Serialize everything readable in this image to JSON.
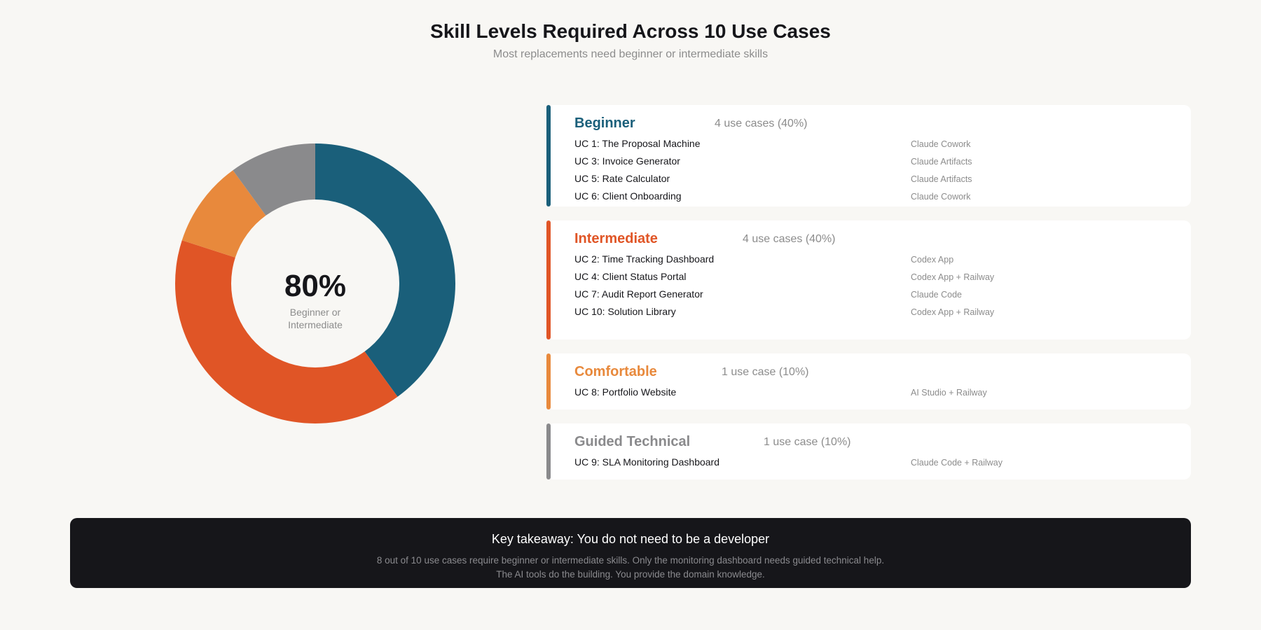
{
  "header": {
    "title": "Skill Levels Required Across 10 Use Cases",
    "subtitle": "Most replacements need beginner or intermediate skills"
  },
  "donut": {
    "big_value": "80%",
    "label_line1": "Beginner or",
    "label_line2": "Intermediate"
  },
  "chart_data": {
    "type": "pie",
    "title": "Skill Levels Required Across 10 Use Cases",
    "subtitle": "Most replacements need beginner or intermediate skills",
    "donut": true,
    "center_annotation": "80% Beginner or Intermediate",
    "categories": [
      "Beginner",
      "Intermediate",
      "Comfortable",
      "Guided Technical"
    ],
    "values": [
      4,
      4,
      1,
      1
    ],
    "percentages": [
      40,
      40,
      10,
      10
    ],
    "colors": [
      "#1a5f7a",
      "#e05526",
      "#e8893c",
      "#8a8a8c"
    ]
  },
  "levels": [
    {
      "name": "Beginner",
      "count": "4 use cases (40%)",
      "color": "#1a5f7a",
      "items": [
        {
          "uc": "UC 1: The Proposal Machine",
          "tool": "Claude Cowork"
        },
        {
          "uc": "UC 3: Invoice Generator",
          "tool": "Claude Artifacts"
        },
        {
          "uc": "UC 5: Rate Calculator",
          "tool": "Claude Artifacts"
        },
        {
          "uc": "UC 6: Client Onboarding",
          "tool": "Claude Cowork"
        }
      ]
    },
    {
      "name": "Intermediate",
      "count": "4 use cases (40%)",
      "color": "#e05526",
      "items": [
        {
          "uc": "UC 2: Time Tracking Dashboard",
          "tool": "Codex App"
        },
        {
          "uc": "UC 4: Client Status Portal",
          "tool": "Codex App + Railway"
        },
        {
          "uc": "UC 7: Audit Report Generator",
          "tool": "Claude Code"
        },
        {
          "uc": "UC 10: Solution Library",
          "tool": "Codex App + Railway"
        }
      ]
    },
    {
      "name": "Comfortable",
      "count": "1 use case (10%)",
      "color": "#e8893c",
      "items": [
        {
          "uc": "UC 8: Portfolio Website",
          "tool": "AI Studio + Railway"
        }
      ]
    },
    {
      "name": "Guided Technical",
      "count": "1 use case (10%)",
      "color": "#8a8a8c",
      "items": [
        {
          "uc": "UC 9: SLA Monitoring Dashboard",
          "tool": "Claude Code + Railway"
        }
      ]
    }
  ],
  "banner": {
    "title": "Key takeaway: You do not need to be a developer",
    "line1": "8 out of 10 use cases require beginner or intermediate skills. Only the monitoring dashboard needs guided technical help.",
    "line2": "The AI tools do the building. You provide the domain knowledge."
  }
}
